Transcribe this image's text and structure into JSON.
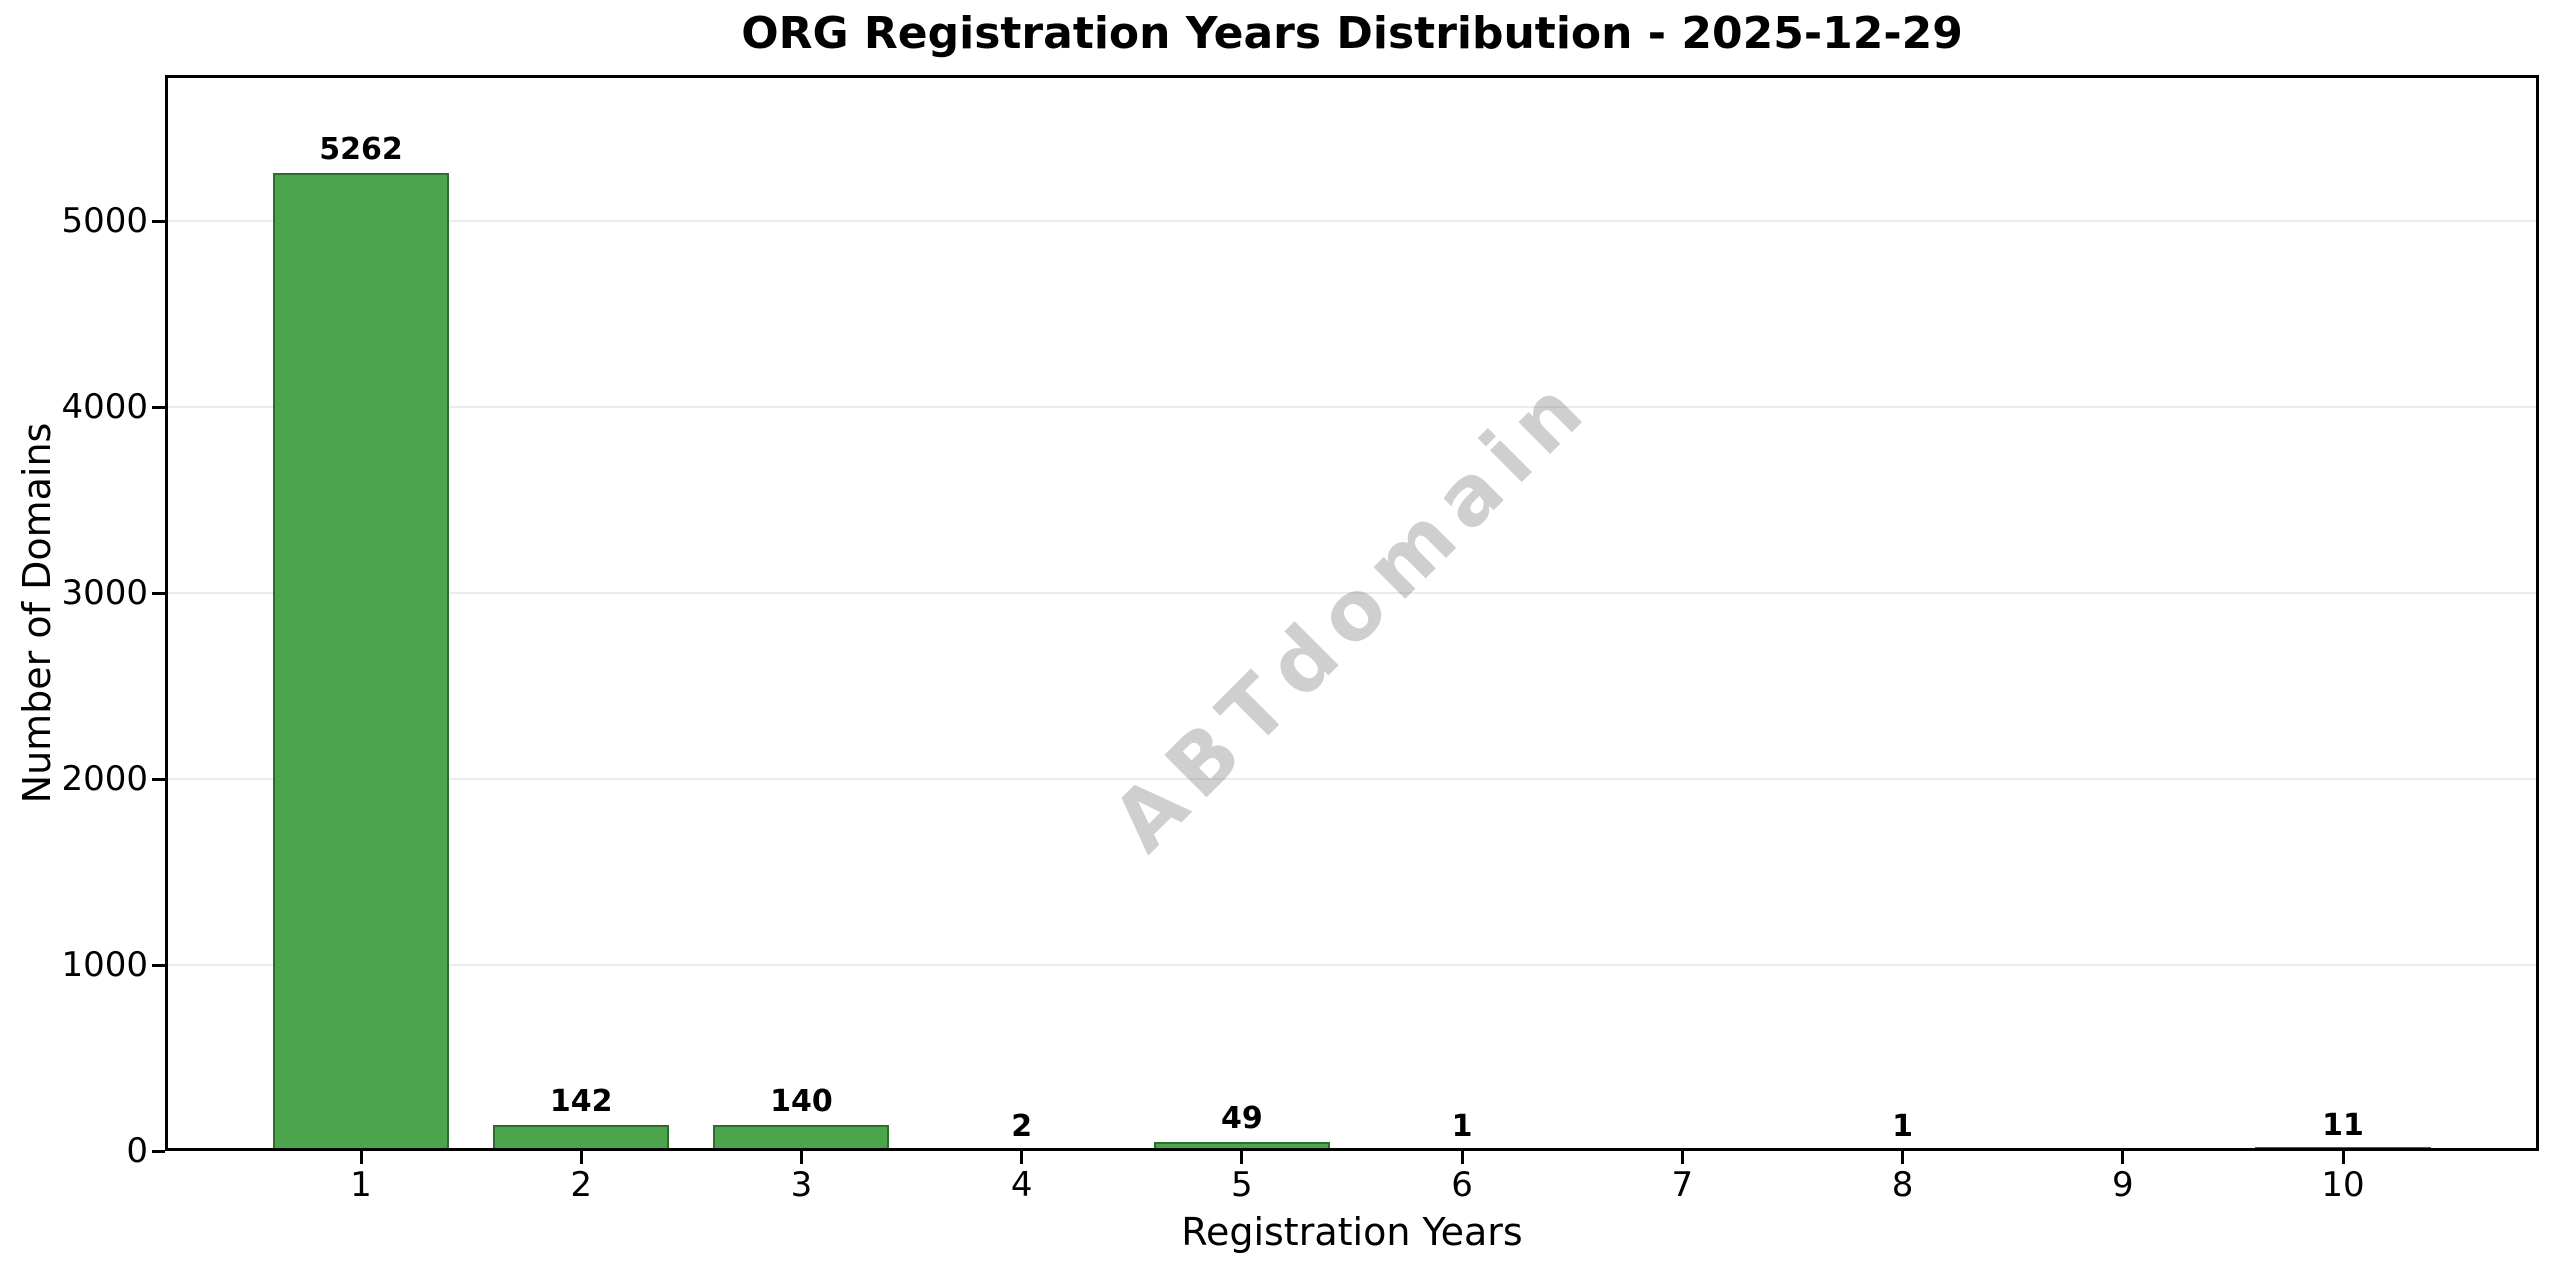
{
  "chart_data": {
    "type": "bar",
    "title": "ORG Registration Years Distribution - 2025-12-29",
    "xlabel": "Registration Years",
    "ylabel": "Number of Domains",
    "categories": [
      "1",
      "2",
      "3",
      "4",
      "5",
      "6",
      "7",
      "8",
      "9",
      "10"
    ],
    "values": [
      5262,
      142,
      140,
      2,
      49,
      1,
      0,
      1,
      0,
      11
    ],
    "yticks": [
      0,
      1000,
      2000,
      3000,
      4000,
      5000
    ],
    "ylim": [
      0,
      5788
    ],
    "grid": "horizontal",
    "legend": "none",
    "bar_color": "#4ca54c",
    "bar_edge_color": "#2d6e2d",
    "grid_color": "#ebebeb",
    "watermark": "ABTdomain",
    "label_nonzero_only": true
  }
}
